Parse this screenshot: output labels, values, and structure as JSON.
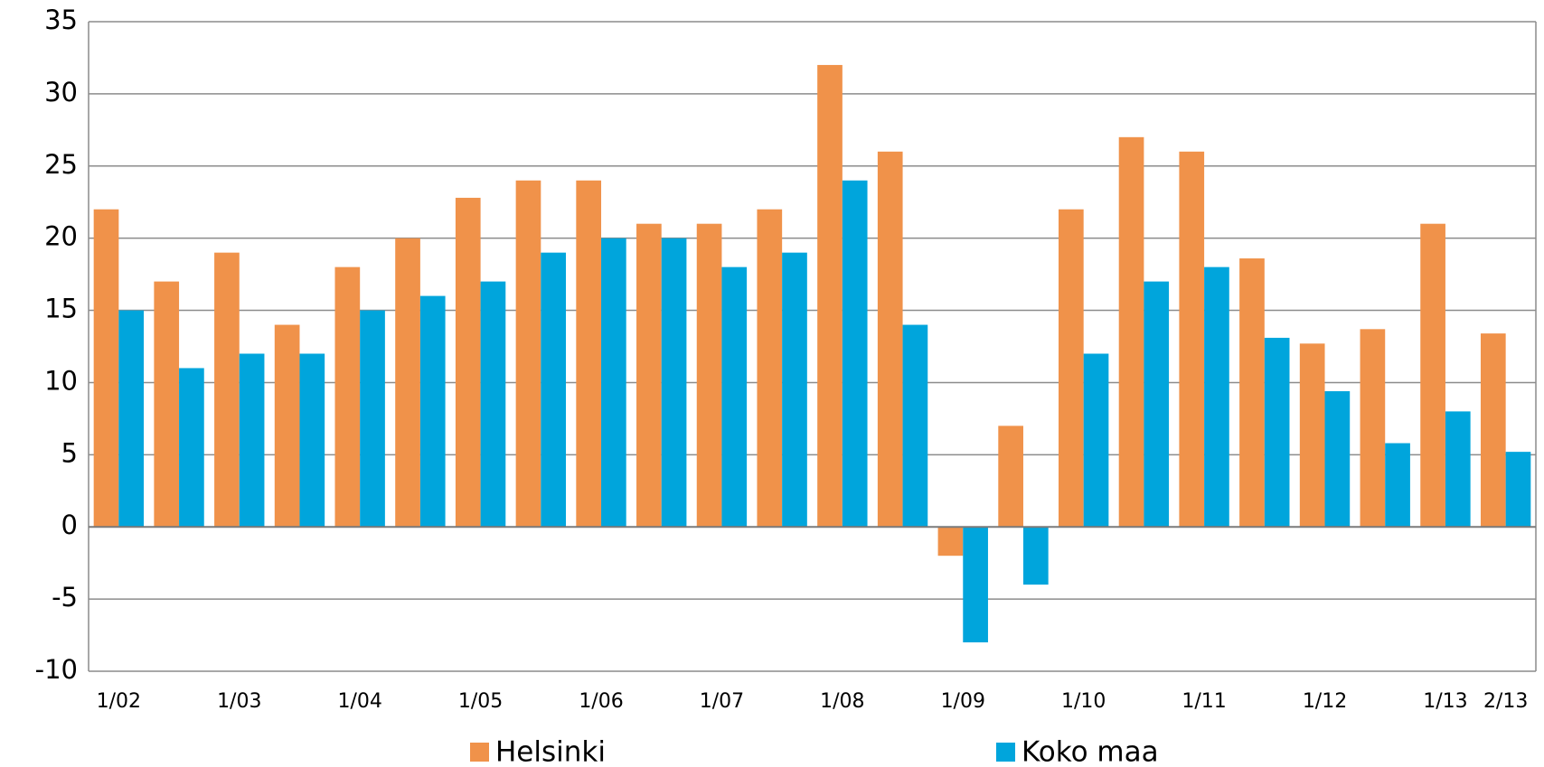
{
  "chart_data": {
    "type": "bar",
    "categories": [
      "1/02",
      null,
      "1/03",
      null,
      "1/04",
      null,
      "1/05",
      null,
      "1/06",
      null,
      "1/07",
      null,
      "1/08",
      null,
      "1/09",
      null,
      "1/10",
      null,
      "1/11",
      null,
      "1/12",
      null,
      "1/13",
      "2/13"
    ],
    "series": [
      {
        "name": "Helsinki",
        "color": "#f0924a",
        "values": [
          22,
          17,
          19,
          14,
          18,
          20,
          22.8,
          24,
          24,
          21,
          21,
          22,
          32,
          26,
          -2,
          7,
          22,
          27,
          26,
          18.6,
          12.7,
          13.7,
          21,
          13.4
        ]
      },
      {
        "name": "Koko maa",
        "color": "#00a5dc",
        "values": [
          15,
          11,
          12,
          12,
          15,
          16,
          17,
          19,
          20,
          20,
          18,
          19,
          24,
          14,
          -8,
          -4,
          12,
          17,
          18,
          13.1,
          9.4,
          5.8,
          8,
          5.2
        ]
      }
    ],
    "ylim": [
      -10,
      35
    ],
    "yticks": [
      -10,
      -5,
      0,
      5,
      10,
      15,
      20,
      25,
      30,
      35
    ],
    "grid": true,
    "legend": "bottom"
  }
}
